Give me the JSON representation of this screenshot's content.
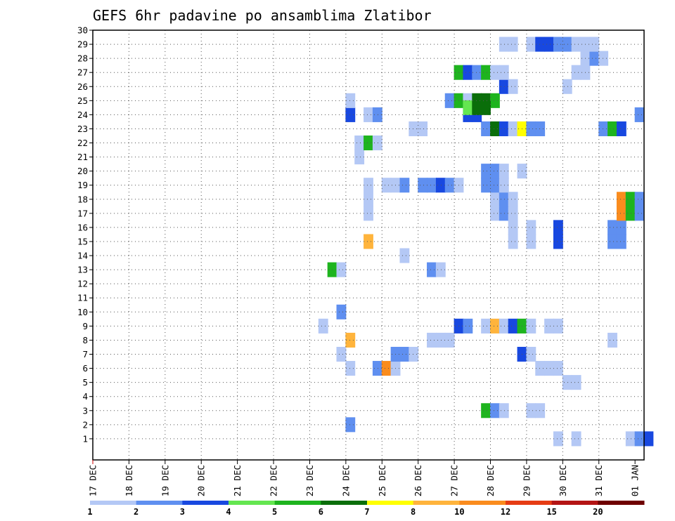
{
  "chart_data": {
    "type": "heatmap",
    "title": "GEFS 6hr padavine po ansamblima Zlatibor",
    "xlabel": "",
    "ylabel": "",
    "x_tick_labels": [
      "17 DEC",
      "18 DEC",
      "19 DEC",
      "20 DEC",
      "21 DEC",
      "22 DEC",
      "23 DEC",
      "24 DEC",
      "25 DEC",
      "26 DEC",
      "27 DEC",
      "28 DEC",
      "29 DEC",
      "30 DEC",
      "31 DEC",
      "01 JAN"
    ],
    "x_units": "6-hour step index (0 = 17 DEC 00Z, 60 = 01 JAN 00Z)",
    "xlim": [
      0,
      61
    ],
    "ylim": [
      0,
      30
    ],
    "y_tick_labels": [
      "1",
      "2",
      "3",
      "4",
      "5",
      "6",
      "7",
      "8",
      "9",
      "10",
      "11",
      "12",
      "13",
      "14",
      "15",
      "16",
      "17",
      "18",
      "19",
      "20",
      "21",
      "22",
      "23",
      "24",
      "25",
      "26",
      "27",
      "28",
      "29",
      "30"
    ],
    "grid": true,
    "color_levels": [
      "1",
      "2",
      "3",
      "4",
      "5",
      "6",
      "7",
      "8",
      "10",
      "12",
      "15",
      "20"
    ],
    "color_bins": [
      "#b4c8f5",
      "#5f8ff0",
      "#1848e0",
      "#64e650",
      "#1eb41e",
      "#0a6e0a",
      "#ffff00",
      "#ffb43c",
      "#fa8c1e",
      "#e63c14",
      "#b41414",
      "#6e0000"
    ],
    "cells": [
      [
        59,
        1,
        0
      ],
      [
        60,
        1,
        1
      ],
      [
        61,
        1,
        2
      ],
      [
        51,
        1,
        0
      ],
      [
        53,
        1,
        0
      ],
      [
        28,
        2,
        1
      ],
      [
        43,
        3,
        4
      ],
      [
        44,
        3,
        1
      ],
      [
        45,
        3,
        0
      ],
      [
        48,
        3,
        0
      ],
      [
        49,
        3,
        0
      ],
      [
        52,
        5,
        0
      ],
      [
        53,
        5,
        0
      ],
      [
        28,
        6,
        0
      ],
      [
        31,
        6,
        1
      ],
      [
        32,
        6,
        8
      ],
      [
        33,
        6,
        0
      ],
      [
        49,
        6,
        0
      ],
      [
        50,
        6,
        0
      ],
      [
        51,
        6,
        0
      ],
      [
        27,
        7,
        0
      ],
      [
        33,
        7,
        1
      ],
      [
        34,
        7,
        1
      ],
      [
        35,
        7,
        0
      ],
      [
        47,
        7,
        2
      ],
      [
        48,
        7,
        0
      ],
      [
        28,
        8,
        7
      ],
      [
        37,
        8,
        0
      ],
      [
        38,
        8,
        0
      ],
      [
        39,
        8,
        0
      ],
      [
        57,
        8,
        0
      ],
      [
        25,
        9,
        0
      ],
      [
        40,
        9,
        2
      ],
      [
        41,
        9,
        1
      ],
      [
        43,
        9,
        0
      ],
      [
        44,
        9,
        7
      ],
      [
        45,
        9,
        0
      ],
      [
        46,
        9,
        2
      ],
      [
        47,
        9,
        4
      ],
      [
        48,
        9,
        0
      ],
      [
        50,
        9,
        0
      ],
      [
        51,
        9,
        0
      ],
      [
        27,
        10,
        1
      ],
      [
        26,
        13,
        4
      ],
      [
        27,
        13,
        0
      ],
      [
        37,
        13,
        1
      ],
      [
        38,
        13,
        0
      ],
      [
        34,
        14,
        0
      ],
      [
        30,
        15,
        7
      ],
      [
        46,
        15,
        0
      ],
      [
        48,
        15,
        0
      ],
      [
        51,
        15,
        2
      ],
      [
        57,
        15,
        1
      ],
      [
        58,
        15,
        1
      ],
      [
        46,
        16,
        0
      ],
      [
        48,
        16,
        0
      ],
      [
        51,
        16,
        2
      ],
      [
        57,
        16,
        1
      ],
      [
        58,
        16,
        1
      ],
      [
        30,
        17,
        0
      ],
      [
        44,
        17,
        0
      ],
      [
        45,
        17,
        1
      ],
      [
        46,
        17,
        0
      ],
      [
        58,
        17,
        8
      ],
      [
        59,
        17,
        4
      ],
      [
        60,
        17,
        1
      ],
      [
        30,
        18,
        0
      ],
      [
        44,
        18,
        0
      ],
      [
        45,
        18,
        1
      ],
      [
        46,
        18,
        0
      ],
      [
        58,
        18,
        8
      ],
      [
        59,
        18,
        4
      ],
      [
        60,
        18,
        1
      ],
      [
        30,
        19,
        0
      ],
      [
        32,
        19,
        0
      ],
      [
        33,
        19,
        0
      ],
      [
        34,
        19,
        1
      ],
      [
        36,
        19,
        1
      ],
      [
        37,
        19,
        1
      ],
      [
        38,
        19,
        2
      ],
      [
        39,
        19,
        1
      ],
      [
        40,
        19,
        0
      ],
      [
        43,
        19,
        1
      ],
      [
        44,
        19,
        1
      ],
      [
        45,
        19,
        0
      ],
      [
        43,
        20,
        1
      ],
      [
        44,
        20,
        1
      ],
      [
        45,
        20,
        0
      ],
      [
        47,
        20,
        0
      ],
      [
        29,
        21,
        0
      ],
      [
        29,
        22,
        0
      ],
      [
        30,
        22,
        4
      ],
      [
        31,
        22,
        0
      ],
      [
        35,
        23,
        0
      ],
      [
        36,
        23,
        0
      ],
      [
        43,
        23,
        1
      ],
      [
        44,
        23,
        5
      ],
      [
        45,
        23,
        2
      ],
      [
        46,
        23,
        0
      ],
      [
        47,
        23,
        6
      ],
      [
        48,
        23,
        1
      ],
      [
        49,
        23,
        1
      ],
      [
        56,
        23,
        1
      ],
      [
        57,
        23,
        4
      ],
      [
        58,
        23,
        2
      ],
      [
        28,
        24,
        2
      ],
      [
        30,
        24,
        0
      ],
      [
        31,
        24,
        1
      ],
      [
        41,
        24,
        2
      ],
      [
        42,
        24,
        2
      ],
      [
        60,
        24,
        1
      ],
      [
        28,
        25,
        0
      ],
      [
        39,
        25,
        1
      ],
      [
        40,
        25,
        4
      ],
      [
        41,
        25,
        0
      ],
      [
        42,
        25,
        5
      ],
      [
        43,
        25,
        5
      ],
      [
        44,
        25,
        4
      ],
      [
        41,
        24.5,
        3
      ],
      [
        42,
        24.5,
        5
      ],
      [
        43,
        24.5,
        5
      ],
      [
        45,
        26,
        2
      ],
      [
        46,
        26,
        0
      ],
      [
        52,
        26,
        0
      ],
      [
        40,
        27,
        4
      ],
      [
        41,
        27,
        2
      ],
      [
        42,
        27,
        1
      ],
      [
        43,
        27,
        4
      ],
      [
        44,
        27,
        0
      ],
      [
        45,
        27,
        0
      ],
      [
        53,
        27,
        0
      ],
      [
        54,
        27,
        0
      ],
      [
        54,
        28,
        0
      ],
      [
        55,
        28,
        1
      ],
      [
        56,
        28,
        0
      ],
      [
        45,
        29,
        0
      ],
      [
        46,
        29,
        0
      ],
      [
        48,
        29,
        0
      ],
      [
        49,
        29,
        2
      ],
      [
        50,
        29,
        2
      ],
      [
        51,
        29,
        1
      ],
      [
        52,
        29,
        1
      ],
      [
        53,
        29,
        0
      ],
      [
        54,
        29,
        0
      ],
      [
        55,
        29,
        0
      ]
    ]
  }
}
